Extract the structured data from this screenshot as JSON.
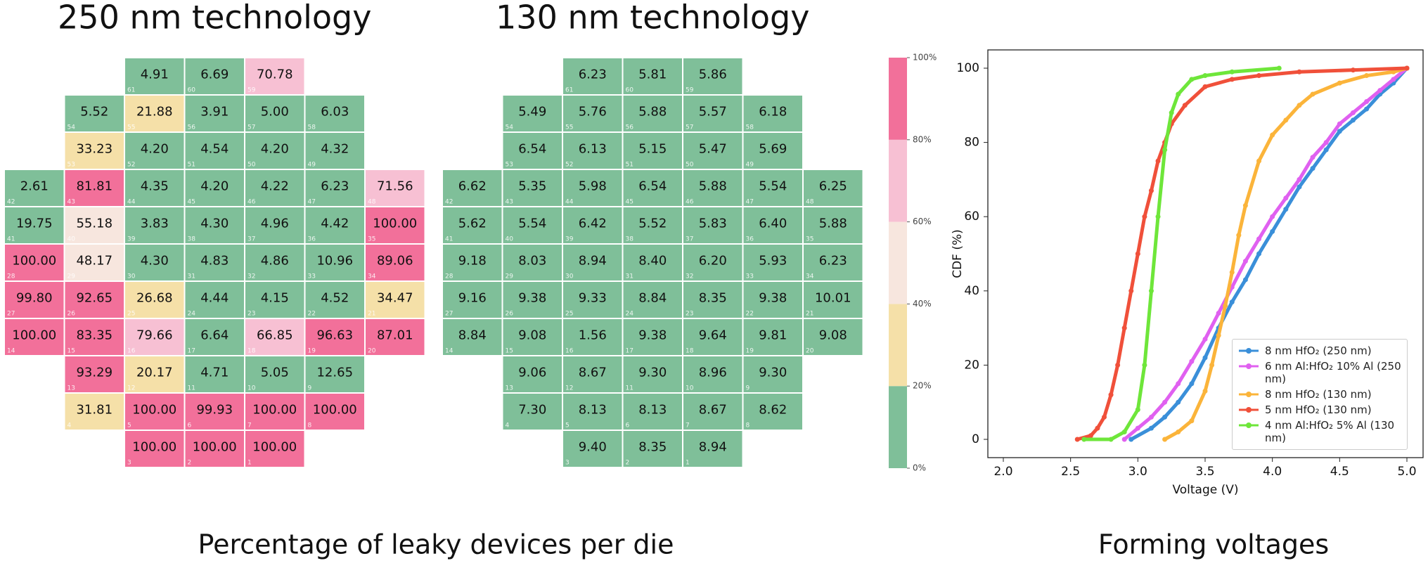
{
  "chart_data": [
    {
      "type": "heatmap",
      "title": "250 nm technology",
      "values": [
        [
          null,
          null,
          4.91,
          6.69,
          70.78,
          null,
          null
        ],
        [
          null,
          5.52,
          21.88,
          3.91,
          5.0,
          6.03,
          null
        ],
        [
          null,
          33.23,
          4.2,
          4.54,
          4.2,
          4.32,
          null
        ],
        [
          2.61,
          81.81,
          4.35,
          4.2,
          4.22,
          6.23,
          71.56
        ],
        [
          19.75,
          55.18,
          3.83,
          4.3,
          4.96,
          4.42,
          100.0
        ],
        [
          100.0,
          48.17,
          4.3,
          4.83,
          4.86,
          10.96,
          89.06
        ],
        [
          99.8,
          92.65,
          26.68,
          4.44,
          4.15,
          4.52,
          34.47
        ],
        [
          100.0,
          83.35,
          79.66,
          6.64,
          66.85,
          96.63,
          87.01
        ],
        [
          null,
          93.29,
          20.17,
          4.71,
          5.05,
          12.65,
          null
        ],
        [
          null,
          31.81,
          100.0,
          99.93,
          100.0,
          100.0,
          null
        ],
        [
          null,
          null,
          100.0,
          100.0,
          100.0,
          null,
          null
        ]
      ],
      "value_labels": [
        [
          null,
          null,
          "4.91",
          "6.69",
          "70.78",
          null,
          null
        ],
        [
          null,
          "5.52",
          "21.88",
          "3.91",
          "5.00",
          "6.03",
          null
        ],
        [
          null,
          "33.23",
          "4.20",
          "4.54",
          "4.20",
          "4.32",
          null
        ],
        [
          "2.61",
          "81.81",
          "4.35",
          "4.20",
          "4.22",
          "6.23",
          "71.56"
        ],
        [
          "19.75",
          "55.18",
          "3.83",
          "4.30",
          "4.96",
          "4.42",
          "100.00"
        ],
        [
          "100.00",
          "48.17",
          "4.30",
          "4.83",
          "4.86",
          "10.96",
          "89.06"
        ],
        [
          "99.80",
          "92.65",
          "26.68",
          "4.44",
          "4.15",
          "4.52",
          "34.47"
        ],
        [
          "100.00",
          "83.35",
          "79.66",
          "6.64",
          "66.85",
          "96.63",
          "87.01"
        ],
        [
          null,
          "93.29",
          "20.17",
          "4.71",
          "5.05",
          "12.65",
          null
        ],
        [
          null,
          "31.81",
          "100.00",
          "99.93",
          "100.00",
          "100.00",
          null
        ],
        [
          null,
          null,
          "100.00",
          "100.00",
          "100.00",
          null,
          null
        ]
      ],
      "die_labels": [
        [
          null,
          null,
          61,
          60,
          59,
          null,
          null
        ],
        [
          null,
          54,
          55,
          56,
          57,
          58,
          null
        ],
        [
          null,
          53,
          52,
          51,
          50,
          49,
          null
        ],
        [
          42,
          43,
          44,
          45,
          46,
          47,
          48
        ],
        [
          41,
          40,
          39,
          38,
          37,
          36,
          35
        ],
        [
          28,
          29,
          30,
          31,
          32,
          33,
          34
        ],
        [
          27,
          26,
          25,
          24,
          23,
          22,
          21
        ],
        [
          14,
          15,
          16,
          17,
          18,
          19,
          20
        ],
        [
          null,
          13,
          12,
          11,
          10,
          9,
          null
        ],
        [
          null,
          4,
          5,
          6,
          7,
          8,
          null
        ],
        [
          null,
          null,
          3,
          2,
          1,
          null,
          null
        ]
      ]
    },
    {
      "type": "heatmap",
      "title": "130 nm technology",
      "values": [
        [
          null,
          null,
          6.23,
          5.81,
          5.86,
          null,
          null
        ],
        [
          null,
          5.49,
          5.76,
          5.88,
          5.57,
          6.18,
          null
        ],
        [
          null,
          6.54,
          6.13,
          5.15,
          5.47,
          5.69,
          null
        ],
        [
          6.62,
          5.35,
          5.98,
          6.54,
          5.88,
          5.54,
          6.25
        ],
        [
          5.62,
          5.54,
          6.42,
          5.52,
          5.83,
          6.4,
          5.88
        ],
        [
          9.18,
          8.03,
          8.94,
          8.4,
          6.2,
          5.93,
          6.23
        ],
        [
          9.16,
          9.38,
          9.33,
          8.84,
          8.35,
          9.38,
          10.01
        ],
        [
          8.84,
          9.08,
          1.56,
          9.38,
          9.64,
          9.81,
          9.08
        ],
        [
          null,
          9.06,
          8.67,
          9.3,
          8.96,
          9.3,
          null
        ],
        [
          null,
          7.3,
          8.13,
          8.13,
          8.67,
          8.62,
          null
        ],
        [
          null,
          null,
          9.4,
          8.35,
          8.94,
          null,
          null
        ]
      ],
      "value_labels": [
        [
          null,
          null,
          "6.23",
          "5.81",
          "5.86",
          null,
          null
        ],
        [
          null,
          "5.49",
          "5.76",
          "5.88",
          "5.57",
          "6.18",
          null
        ],
        [
          null,
          "6.54",
          "6.13",
          "5.15",
          "5.47",
          "5.69",
          null
        ],
        [
          "6.62",
          "5.35",
          "5.98",
          "6.54",
          "5.88",
          "5.54",
          "6.25"
        ],
        [
          "5.62",
          "5.54",
          "6.42",
          "5.52",
          "5.83",
          "6.40",
          "5.88"
        ],
        [
          "9.18",
          "8.03",
          "8.94",
          "8.40",
          "6.20",
          "5.93",
          "6.23"
        ],
        [
          "9.16",
          "9.38",
          "9.33",
          "8.84",
          "8.35",
          "9.38",
          "10.01"
        ],
        [
          "8.84",
          "9.08",
          "1.56",
          "9.38",
          "9.64",
          "9.81",
          "9.08"
        ],
        [
          null,
          "9.06",
          "8.67",
          "9.30",
          "8.96",
          "9.30",
          null
        ],
        [
          null,
          "7.30",
          "8.13",
          "8.13",
          "8.67",
          "8.62",
          null
        ],
        [
          null,
          null,
          "9.40",
          "8.35",
          "8.94",
          null,
          null
        ]
      ],
      "die_labels": [
        [
          null,
          null,
          61,
          60,
          59,
          null,
          null
        ],
        [
          null,
          54,
          55,
          56,
          57,
          58,
          null
        ],
        [
          null,
          53,
          52,
          51,
          50,
          49,
          null
        ],
        [
          42,
          43,
          44,
          45,
          46,
          47,
          48
        ],
        [
          41,
          40,
          39,
          38,
          37,
          36,
          35
        ],
        [
          28,
          29,
          30,
          31,
          32,
          33,
          34
        ],
        [
          27,
          26,
          25,
          24,
          23,
          22,
          21
        ],
        [
          14,
          15,
          16,
          17,
          18,
          19,
          20
        ],
        [
          null,
          13,
          12,
          11,
          10,
          9,
          null
        ],
        [
          null,
          4,
          5,
          6,
          7,
          8,
          null
        ],
        [
          null,
          null,
          3,
          2,
          1,
          null,
          null
        ]
      ]
    },
    {
      "type": "colorbar",
      "ylim": [
        0,
        100
      ],
      "colors": [
        "#7fbf99",
        "#f5e0a8",
        "#f7e6de",
        "#f7c0d3",
        "#f2709a"
      ],
      "ticks": [
        {
          "value": 0,
          "label": "0%"
        },
        {
          "value": 20,
          "label": "20%"
        },
        {
          "value": 40,
          "label": "40%"
        },
        {
          "value": 60,
          "label": "60%"
        },
        {
          "value": 80,
          "label": "80%"
        },
        {
          "value": 100,
          "label": "100%"
        }
      ]
    },
    {
      "type": "line",
      "xlabel": "Voltage (V)",
      "ylabel": "CDF (%)",
      "xlim": [
        2,
        5
      ],
      "ylim": [
        0,
        100
      ],
      "xticks": [
        {
          "value": 2,
          "label": "2.0"
        },
        {
          "value": 2.5,
          "label": "2.5"
        },
        {
          "value": 3,
          "label": "3.0"
        },
        {
          "value": 3.5,
          "label": "3.5"
        },
        {
          "value": 4,
          "label": "4.0"
        },
        {
          "value": 4.5,
          "label": "4.5"
        },
        {
          "value": 5,
          "label": "5.0"
        }
      ],
      "yticks": [
        0,
        20,
        40,
        60,
        80,
        100
      ],
      "legend": "lower right",
      "series": [
        {
          "name": "8 nm HfO₂ (250 nm)",
          "color": "#3a8fd9",
          "x": [
            2.95,
            3.1,
            3.2,
            3.3,
            3.4,
            3.5,
            3.6,
            3.7,
            3.8,
            3.9,
            4.0,
            4.1,
            4.2,
            4.3,
            4.4,
            4.5,
            4.6,
            4.7,
            4.8,
            4.9,
            5.0
          ],
          "values": [
            0,
            3,
            6,
            10,
            15,
            22,
            30,
            37,
            43,
            50,
            56,
            62,
            68,
            73,
            78,
            83,
            86,
            89,
            93,
            96,
            100
          ]
        },
        {
          "name": "6 nm Al:HfO₂ 10% Al (250 nm)",
          "color": "#e060f0",
          "x": [
            2.9,
            3.0,
            3.1,
            3.2,
            3.3,
            3.4,
            3.5,
            3.6,
            3.7,
            3.8,
            3.9,
            4.0,
            4.1,
            4.2,
            4.3,
            4.4,
            4.5,
            4.6,
            4.7,
            4.8,
            4.9,
            5.0
          ],
          "values": [
            0,
            3,
            6,
            10,
            15,
            21,
            27,
            34,
            41,
            48,
            54,
            60,
            65,
            70,
            76,
            80,
            85,
            88,
            91,
            94,
            97,
            100
          ]
        },
        {
          "name": "8 nm HfO₂ (130 nm)",
          "color": "#fbb43a",
          "x": [
            3.2,
            3.3,
            3.4,
            3.5,
            3.55,
            3.6,
            3.65,
            3.7,
            3.75,
            3.8,
            3.9,
            4.0,
            4.1,
            4.2,
            4.3,
            4.5,
            4.7,
            4.9,
            5.0
          ],
          "values": [
            0,
            2,
            5,
            13,
            20,
            28,
            36,
            45,
            55,
            63,
            75,
            82,
            86,
            90,
            93,
            96,
            98,
            99,
            100
          ]
        },
        {
          "name": "5 nm HfO₂ (130 nm)",
          "color": "#f0503a",
          "x": [
            2.55,
            2.65,
            2.7,
            2.75,
            2.8,
            2.85,
            2.9,
            2.95,
            3.0,
            3.05,
            3.1,
            3.15,
            3.2,
            3.25,
            3.35,
            3.5,
            3.7,
            3.9,
            4.2,
            4.6,
            5.0
          ],
          "values": [
            0,
            1,
            3,
            6,
            12,
            20,
            30,
            40,
            50,
            60,
            67,
            75,
            80,
            85,
            90,
            95,
            97,
            98,
            99,
            99.5,
            100
          ]
        },
        {
          "name": "4 nm Al:HfO₂ 5% Al (130 nm)",
          "color": "#6ee63a",
          "x": [
            2.6,
            2.8,
            2.9,
            3.0,
            3.05,
            3.1,
            3.15,
            3.2,
            3.25,
            3.3,
            3.4,
            3.5,
            3.7,
            4.05
          ],
          "values": [
            0,
            0,
            2,
            8,
            20,
            40,
            60,
            78,
            88,
            93,
            97,
            98,
            99,
            100
          ]
        }
      ]
    }
  ],
  "captions": [
    "Percentage of leaky devices per die",
    "Forming voltages"
  ]
}
